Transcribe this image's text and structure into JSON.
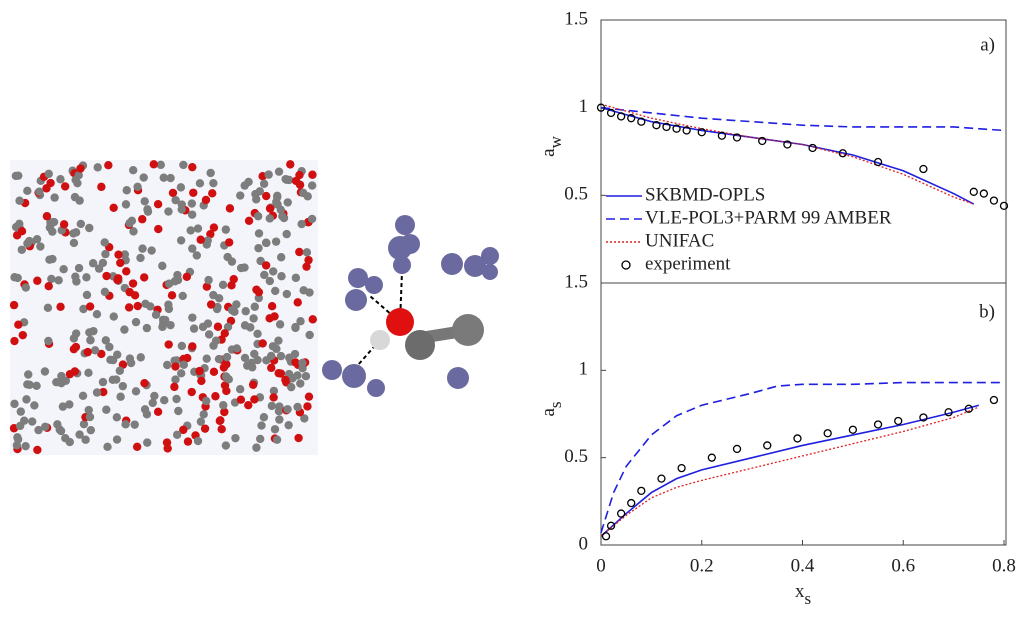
{
  "chart_data": [
    {
      "type": "line",
      "panel_label": "a)",
      "y_label": {
        "main": "a",
        "sub": "w"
      },
      "xlim": [
        0,
        0.8
      ],
      "ylim": [
        0,
        1.5
      ],
      "yticks": [
        0.5,
        1,
        1.5
      ],
      "legend": "lower-left",
      "series": [
        {
          "name": "SKBMD-OPLS",
          "color": "#1f1fe0",
          "style": "solid",
          "x": [
            0,
            0.1,
            0.2,
            0.3,
            0.4,
            0.5,
            0.6,
            0.7,
            0.74
          ],
          "values": [
            1.0,
            0.92,
            0.87,
            0.83,
            0.79,
            0.73,
            0.64,
            0.51,
            0.45
          ]
        },
        {
          "name": "VLE-POL3+PARM 99 AMBER",
          "color": "#1f1fe0",
          "style": "dashed",
          "x": [
            0,
            0.1,
            0.2,
            0.3,
            0.4,
            0.5,
            0.6,
            0.7,
            0.8
          ],
          "values": [
            1.0,
            0.97,
            0.94,
            0.92,
            0.9,
            0.89,
            0.89,
            0.89,
            0.87
          ]
        },
        {
          "name": "UNIFAC",
          "color": "#e02020",
          "style": "dotted",
          "x": [
            0,
            0.1,
            0.2,
            0.3,
            0.4,
            0.5,
            0.6,
            0.7,
            0.74
          ],
          "values": [
            1.02,
            0.94,
            0.88,
            0.83,
            0.79,
            0.72,
            0.62,
            0.49,
            0.45
          ]
        },
        {
          "name": "experiment",
          "color": "#000000",
          "style": "marker",
          "x": [
            0,
            0.02,
            0.04,
            0.06,
            0.08,
            0.11,
            0.13,
            0.15,
            0.17,
            0.2,
            0.24,
            0.27,
            0.32,
            0.37,
            0.42,
            0.48,
            0.55,
            0.64,
            0.74,
            0.76,
            0.78,
            0.8
          ],
          "values": [
            1.0,
            0.97,
            0.95,
            0.94,
            0.92,
            0.9,
            0.89,
            0.88,
            0.87,
            0.86,
            0.84,
            0.83,
            0.81,
            0.79,
            0.77,
            0.74,
            0.69,
            0.65,
            0.52,
            0.51,
            0.47,
            0.44
          ]
        }
      ]
    },
    {
      "type": "line",
      "panel_label": "b)",
      "y_label": {
        "main": "a",
        "sub": "s"
      },
      "x_label": {
        "main": "x",
        "sub": "s"
      },
      "xlim": [
        0,
        0.8
      ],
      "xticks": [
        0,
        0.2,
        0.4,
        0.6,
        0.8
      ],
      "ylim": [
        0,
        1.5
      ],
      "yticks": [
        0,
        0.5,
        1,
        1.5
      ],
      "series": [
        {
          "name": "SKBMD-OPLS",
          "color": "#1f1fe0",
          "style": "solid",
          "x": [
            0,
            0.05,
            0.1,
            0.15,
            0.2,
            0.3,
            0.4,
            0.5,
            0.6,
            0.7,
            0.75
          ],
          "values": [
            0.05,
            0.18,
            0.3,
            0.38,
            0.43,
            0.5,
            0.57,
            0.63,
            0.69,
            0.76,
            0.8
          ]
        },
        {
          "name": "VLE-POL3+PARM 99 AMBER",
          "color": "#1f1fe0",
          "style": "dashed",
          "x": [
            0,
            0.025,
            0.05,
            0.1,
            0.15,
            0.2,
            0.3,
            0.35,
            0.4,
            0.5,
            0.6,
            0.7,
            0.8
          ],
          "values": [
            0.07,
            0.3,
            0.45,
            0.63,
            0.74,
            0.8,
            0.87,
            0.91,
            0.92,
            0.92,
            0.93,
            0.93,
            0.93
          ]
        },
        {
          "name": "UNIFAC",
          "color": "#e02020",
          "style": "dotted",
          "x": [
            0,
            0.05,
            0.1,
            0.15,
            0.2,
            0.3,
            0.4,
            0.5,
            0.6,
            0.7,
            0.75
          ],
          "values": [
            0.05,
            0.17,
            0.27,
            0.33,
            0.37,
            0.44,
            0.51,
            0.58,
            0.65,
            0.73,
            0.79
          ]
        },
        {
          "name": "experiment",
          "color": "#000000",
          "style": "marker",
          "x": [
            0.01,
            0.02,
            0.04,
            0.06,
            0.08,
            0.12,
            0.16,
            0.22,
            0.27,
            0.33,
            0.39,
            0.45,
            0.5,
            0.55,
            0.59,
            0.64,
            0.69,
            0.73,
            0.78
          ],
          "values": [
            0.05,
            0.11,
            0.18,
            0.24,
            0.31,
            0.38,
            0.44,
            0.5,
            0.55,
            0.57,
            0.61,
            0.64,
            0.66,
            0.69,
            0.71,
            0.73,
            0.76,
            0.78,
            0.83
          ]
        }
      ]
    }
  ]
}
